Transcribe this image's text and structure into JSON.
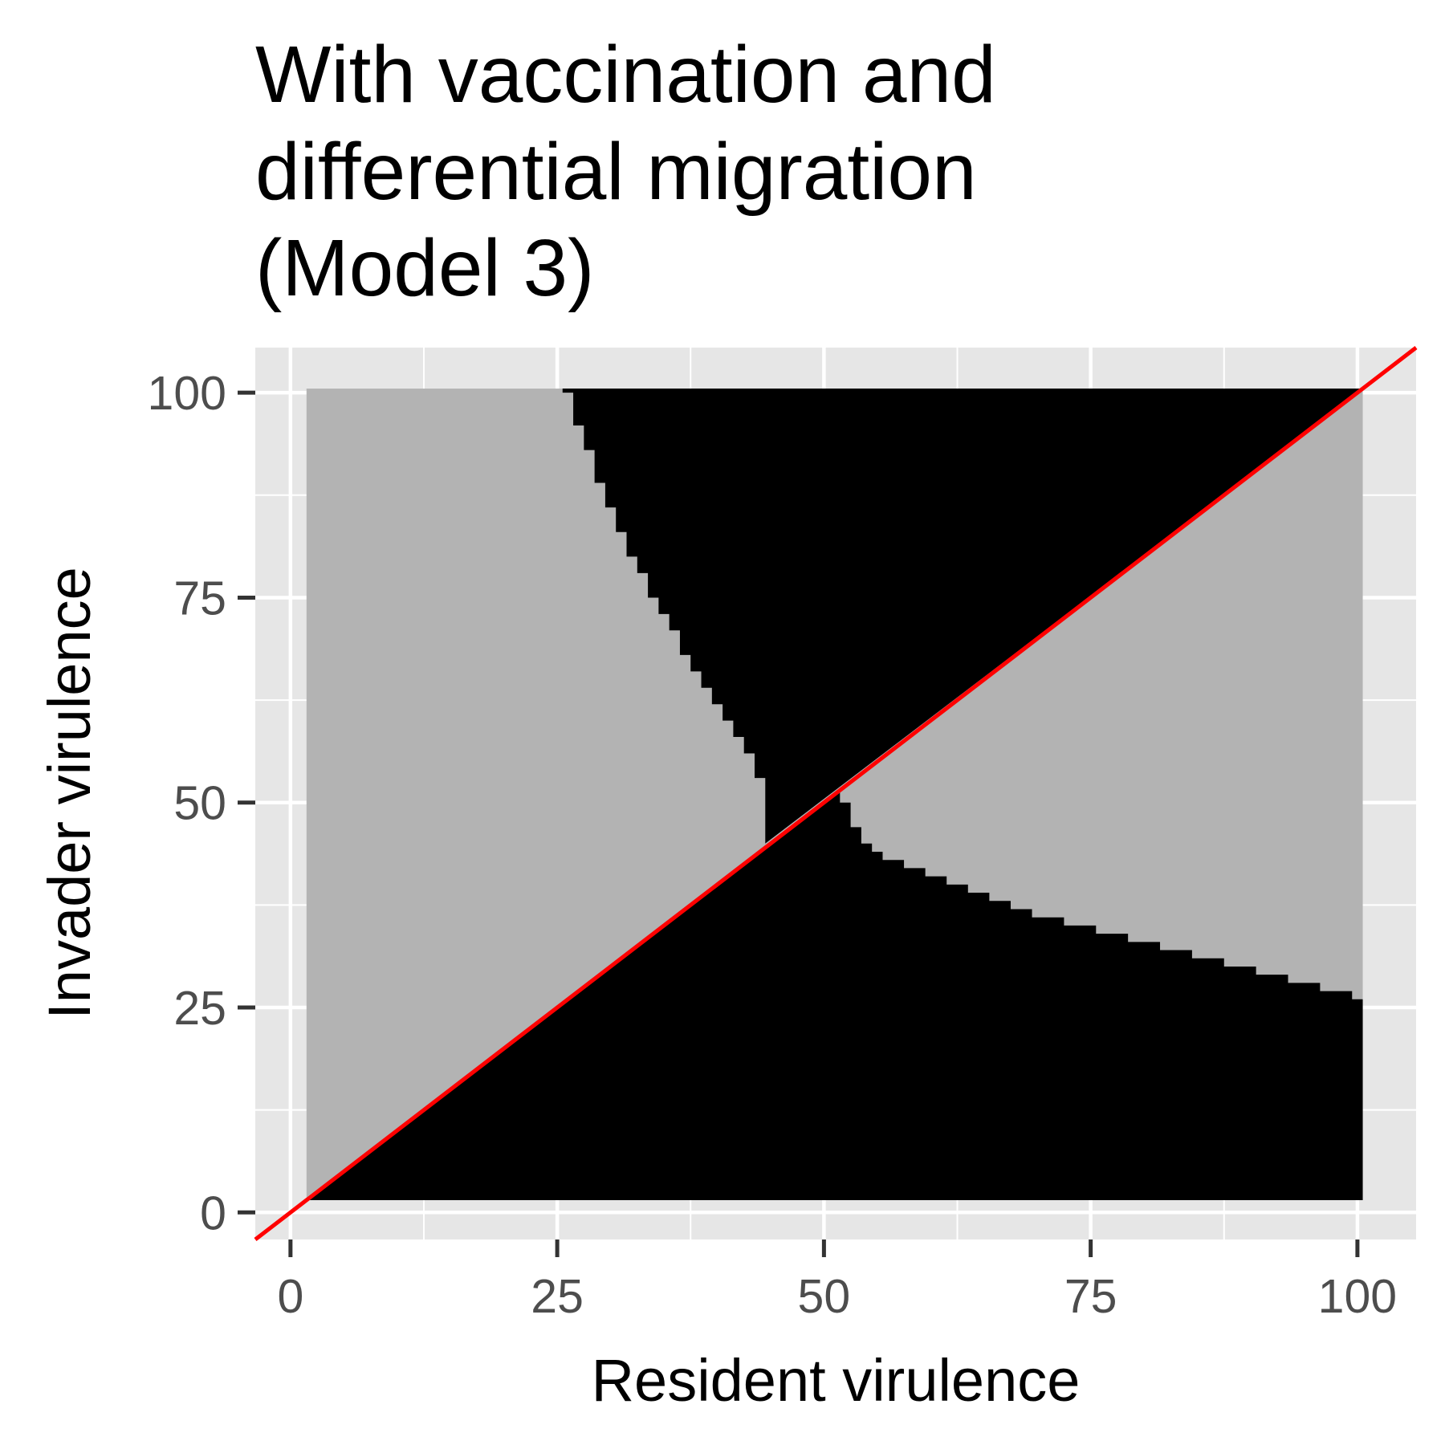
{
  "chart_data": {
    "type": "heatmap",
    "title_lines": [
      "With vaccination and",
      "differential migration",
      "(Model 3)"
    ],
    "xlabel": "Resident virulence",
    "ylabel": "Invader virulence",
    "xlim": [
      -3.3,
      105.5
    ],
    "ylim": [
      -3.3,
      105.5
    ],
    "x_ticks": [
      0,
      25,
      50,
      75,
      100
    ],
    "y_ticks": [
      0,
      25,
      50,
      75,
      100
    ],
    "grid": true,
    "grid_minor": true,
    "legend": "none",
    "grid_range": {
      "min": 2,
      "max": 100
    },
    "cell_colors": {
      "invasion_fails": "#b3b3b3",
      "invasion_succeeds": "#000000"
    },
    "diagonal": {
      "slope": 1,
      "intercept": 0,
      "color": "#ff0000"
    },
    "upper_boundary": [
      [
        26,
        100
      ],
      [
        27,
        96
      ],
      [
        28,
        93
      ],
      [
        29,
        89
      ],
      [
        30,
        86
      ],
      [
        31,
        83
      ],
      [
        32,
        80
      ],
      [
        33,
        78
      ],
      [
        34,
        75
      ],
      [
        35,
        73
      ],
      [
        36,
        71
      ],
      [
        37,
        68
      ],
      [
        38,
        66
      ],
      [
        39,
        64
      ],
      [
        40,
        62
      ],
      [
        41,
        60
      ],
      [
        42,
        58
      ],
      [
        43,
        56
      ],
      [
        44,
        53
      ],
      [
        45,
        51
      ]
    ],
    "lower_boundary": [
      [
        52,
        50
      ],
      [
        53,
        47
      ],
      [
        54,
        45
      ],
      [
        55,
        44
      ],
      [
        56,
        43
      ],
      [
        58,
        42
      ],
      [
        60,
        41
      ],
      [
        62,
        40
      ],
      [
        64,
        39
      ],
      [
        66,
        38
      ],
      [
        68,
        37
      ],
      [
        70,
        36
      ],
      [
        73,
        35
      ],
      [
        76,
        34
      ],
      [
        79,
        33
      ],
      [
        82,
        32
      ],
      [
        85,
        31
      ],
      [
        88,
        30
      ],
      [
        91,
        29
      ],
      [
        94,
        28
      ],
      [
        97,
        27
      ],
      [
        100,
        26
      ]
    ]
  }
}
